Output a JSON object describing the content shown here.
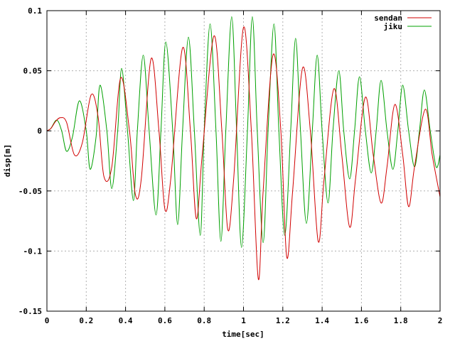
{
  "chart_data": {
    "type": "line",
    "title": "",
    "xlabel": "time[sec]",
    "ylabel": "disp[m]",
    "xlim": [
      0,
      2
    ],
    "ylim": [
      -0.15,
      0.1
    ],
    "grid": true,
    "legend_position": "top-right",
    "x_ticks": [
      {
        "value": 0,
        "label": "0"
      },
      {
        "value": 0.2,
        "label": "0.2"
      },
      {
        "value": 0.4,
        "label": "0.4"
      },
      {
        "value": 0.6,
        "label": "0.6"
      },
      {
        "value": 0.8,
        "label": "0.8"
      },
      {
        "value": 1.0,
        "label": "1"
      },
      {
        "value": 1.2,
        "label": "1.2"
      },
      {
        "value": 1.4,
        "label": "1.4"
      },
      {
        "value": 1.6,
        "label": "1.6"
      },
      {
        "value": 1.8,
        "label": "1.8"
      },
      {
        "value": 2.0,
        "label": "2"
      }
    ],
    "y_ticks": [
      {
        "value": 0.1,
        "label": "0.1"
      },
      {
        "value": 0.05,
        "label": "0.05"
      },
      {
        "value": 0,
        "label": "0"
      },
      {
        "value": -0.05,
        "label": "-0.05"
      },
      {
        "value": -0.1,
        "label": "-0.1"
      },
      {
        "value": -0.15,
        "label": "-0.15"
      }
    ],
    "series": [
      {
        "name": "sendan",
        "color": "#d10000",
        "points": [
          [
            0.0,
            0.0
          ],
          [
            0.02,
            0.002
          ],
          [
            0.045,
            0.008
          ],
          [
            0.07,
            0.011
          ],
          [
            0.1,
            0.007
          ],
          [
            0.14,
            -0.02
          ],
          [
            0.18,
            -0.01
          ],
          [
            0.225,
            0.03
          ],
          [
            0.26,
            0.012
          ],
          [
            0.29,
            -0.038
          ],
          [
            0.33,
            -0.03
          ],
          [
            0.375,
            0.044
          ],
          [
            0.42,
            0.0
          ],
          [
            0.45,
            -0.053
          ],
          [
            0.48,
            -0.04
          ],
          [
            0.53,
            0.06
          ],
          [
            0.57,
            0.0
          ],
          [
            0.6,
            -0.065
          ],
          [
            0.63,
            -0.04
          ],
          [
            0.69,
            0.069
          ],
          [
            0.73,
            0.0
          ],
          [
            0.76,
            -0.073
          ],
          [
            0.79,
            -0.02
          ],
          [
            0.85,
            0.079
          ],
          [
            0.89,
            0.0
          ],
          [
            0.92,
            -0.082
          ],
          [
            0.95,
            -0.04
          ],
          [
            1.0,
            0.086
          ],
          [
            1.04,
            0.0
          ],
          [
            1.075,
            -0.123
          ],
          [
            1.1,
            -0.05
          ],
          [
            1.15,
            0.063
          ],
          [
            1.19,
            0.0
          ],
          [
            1.22,
            -0.105
          ],
          [
            1.25,
            -0.05
          ],
          [
            1.3,
            0.052
          ],
          [
            1.34,
            0.0
          ],
          [
            1.38,
            -0.092
          ],
          [
            1.41,
            -0.04
          ],
          [
            1.46,
            0.035
          ],
          [
            1.5,
            -0.02
          ],
          [
            1.54,
            -0.08
          ],
          [
            1.57,
            -0.04
          ],
          [
            1.62,
            0.028
          ],
          [
            1.66,
            -0.02
          ],
          [
            1.7,
            -0.06
          ],
          [
            1.73,
            -0.03
          ],
          [
            1.77,
            0.022
          ],
          [
            1.81,
            -0.02
          ],
          [
            1.84,
            -0.063
          ],
          [
            1.87,
            -0.03
          ],
          [
            1.925,
            0.018
          ],
          [
            1.96,
            -0.02
          ],
          [
            2.0,
            -0.055
          ]
        ]
      },
      {
        "name": "jiku",
        "color": "#00a000",
        "points": [
          [
            0.0,
            0.0
          ],
          [
            0.02,
            0.002
          ],
          [
            0.05,
            0.009
          ],
          [
            0.075,
            0.0
          ],
          [
            0.1,
            -0.017
          ],
          [
            0.13,
            -0.005
          ],
          [
            0.165,
            0.025
          ],
          [
            0.2,
            0.0
          ],
          [
            0.22,
            -0.032
          ],
          [
            0.25,
            -0.005
          ],
          [
            0.27,
            0.038
          ],
          [
            0.305,
            0.0
          ],
          [
            0.33,
            -0.048
          ],
          [
            0.36,
            0.0
          ],
          [
            0.38,
            0.052
          ],
          [
            0.41,
            0.0
          ],
          [
            0.44,
            -0.058
          ],
          [
            0.46,
            0.0
          ],
          [
            0.49,
            0.063
          ],
          [
            0.52,
            0.0
          ],
          [
            0.555,
            -0.07
          ],
          [
            0.58,
            0.0
          ],
          [
            0.605,
            0.074
          ],
          [
            0.64,
            0.0
          ],
          [
            0.665,
            -0.078
          ],
          [
            0.69,
            0.0
          ],
          [
            0.72,
            0.078
          ],
          [
            0.75,
            0.0
          ],
          [
            0.78,
            -0.087
          ],
          [
            0.8,
            0.0
          ],
          [
            0.83,
            0.089
          ],
          [
            0.86,
            0.0
          ],
          [
            0.885,
            -0.092
          ],
          [
            0.91,
            0.0
          ],
          [
            0.94,
            0.095
          ],
          [
            0.965,
            0.0
          ],
          [
            0.99,
            -0.097
          ],
          [
            1.02,
            0.0
          ],
          [
            1.045,
            0.095
          ],
          [
            1.07,
            0.0
          ],
          [
            1.1,
            -0.093
          ],
          [
            1.125,
            0.0
          ],
          [
            1.155,
            0.089
          ],
          [
            1.18,
            0.0
          ],
          [
            1.21,
            -0.087
          ],
          [
            1.24,
            0.0
          ],
          [
            1.265,
            0.077
          ],
          [
            1.29,
            0.0
          ],
          [
            1.32,
            -0.077
          ],
          [
            1.35,
            0.0
          ],
          [
            1.375,
            0.063
          ],
          [
            1.4,
            0.0
          ],
          [
            1.43,
            -0.06
          ],
          [
            1.455,
            0.0
          ],
          [
            1.485,
            0.05
          ],
          [
            1.51,
            0.0
          ],
          [
            1.54,
            -0.04
          ],
          [
            1.565,
            0.0
          ],
          [
            1.59,
            0.045
          ],
          [
            1.62,
            0.0
          ],
          [
            1.65,
            -0.035
          ],
          [
            1.675,
            0.0
          ],
          [
            1.7,
            0.042
          ],
          [
            1.73,
            0.0
          ],
          [
            1.76,
            -0.032
          ],
          [
            1.785,
            0.0
          ],
          [
            1.81,
            0.038
          ],
          [
            1.84,
            0.0
          ],
          [
            1.87,
            -0.03
          ],
          [
            1.895,
            0.0
          ],
          [
            1.92,
            0.034
          ],
          [
            1.95,
            0.0
          ],
          [
            1.98,
            -0.03
          ],
          [
            2.0,
            -0.02
          ]
        ]
      }
    ]
  }
}
